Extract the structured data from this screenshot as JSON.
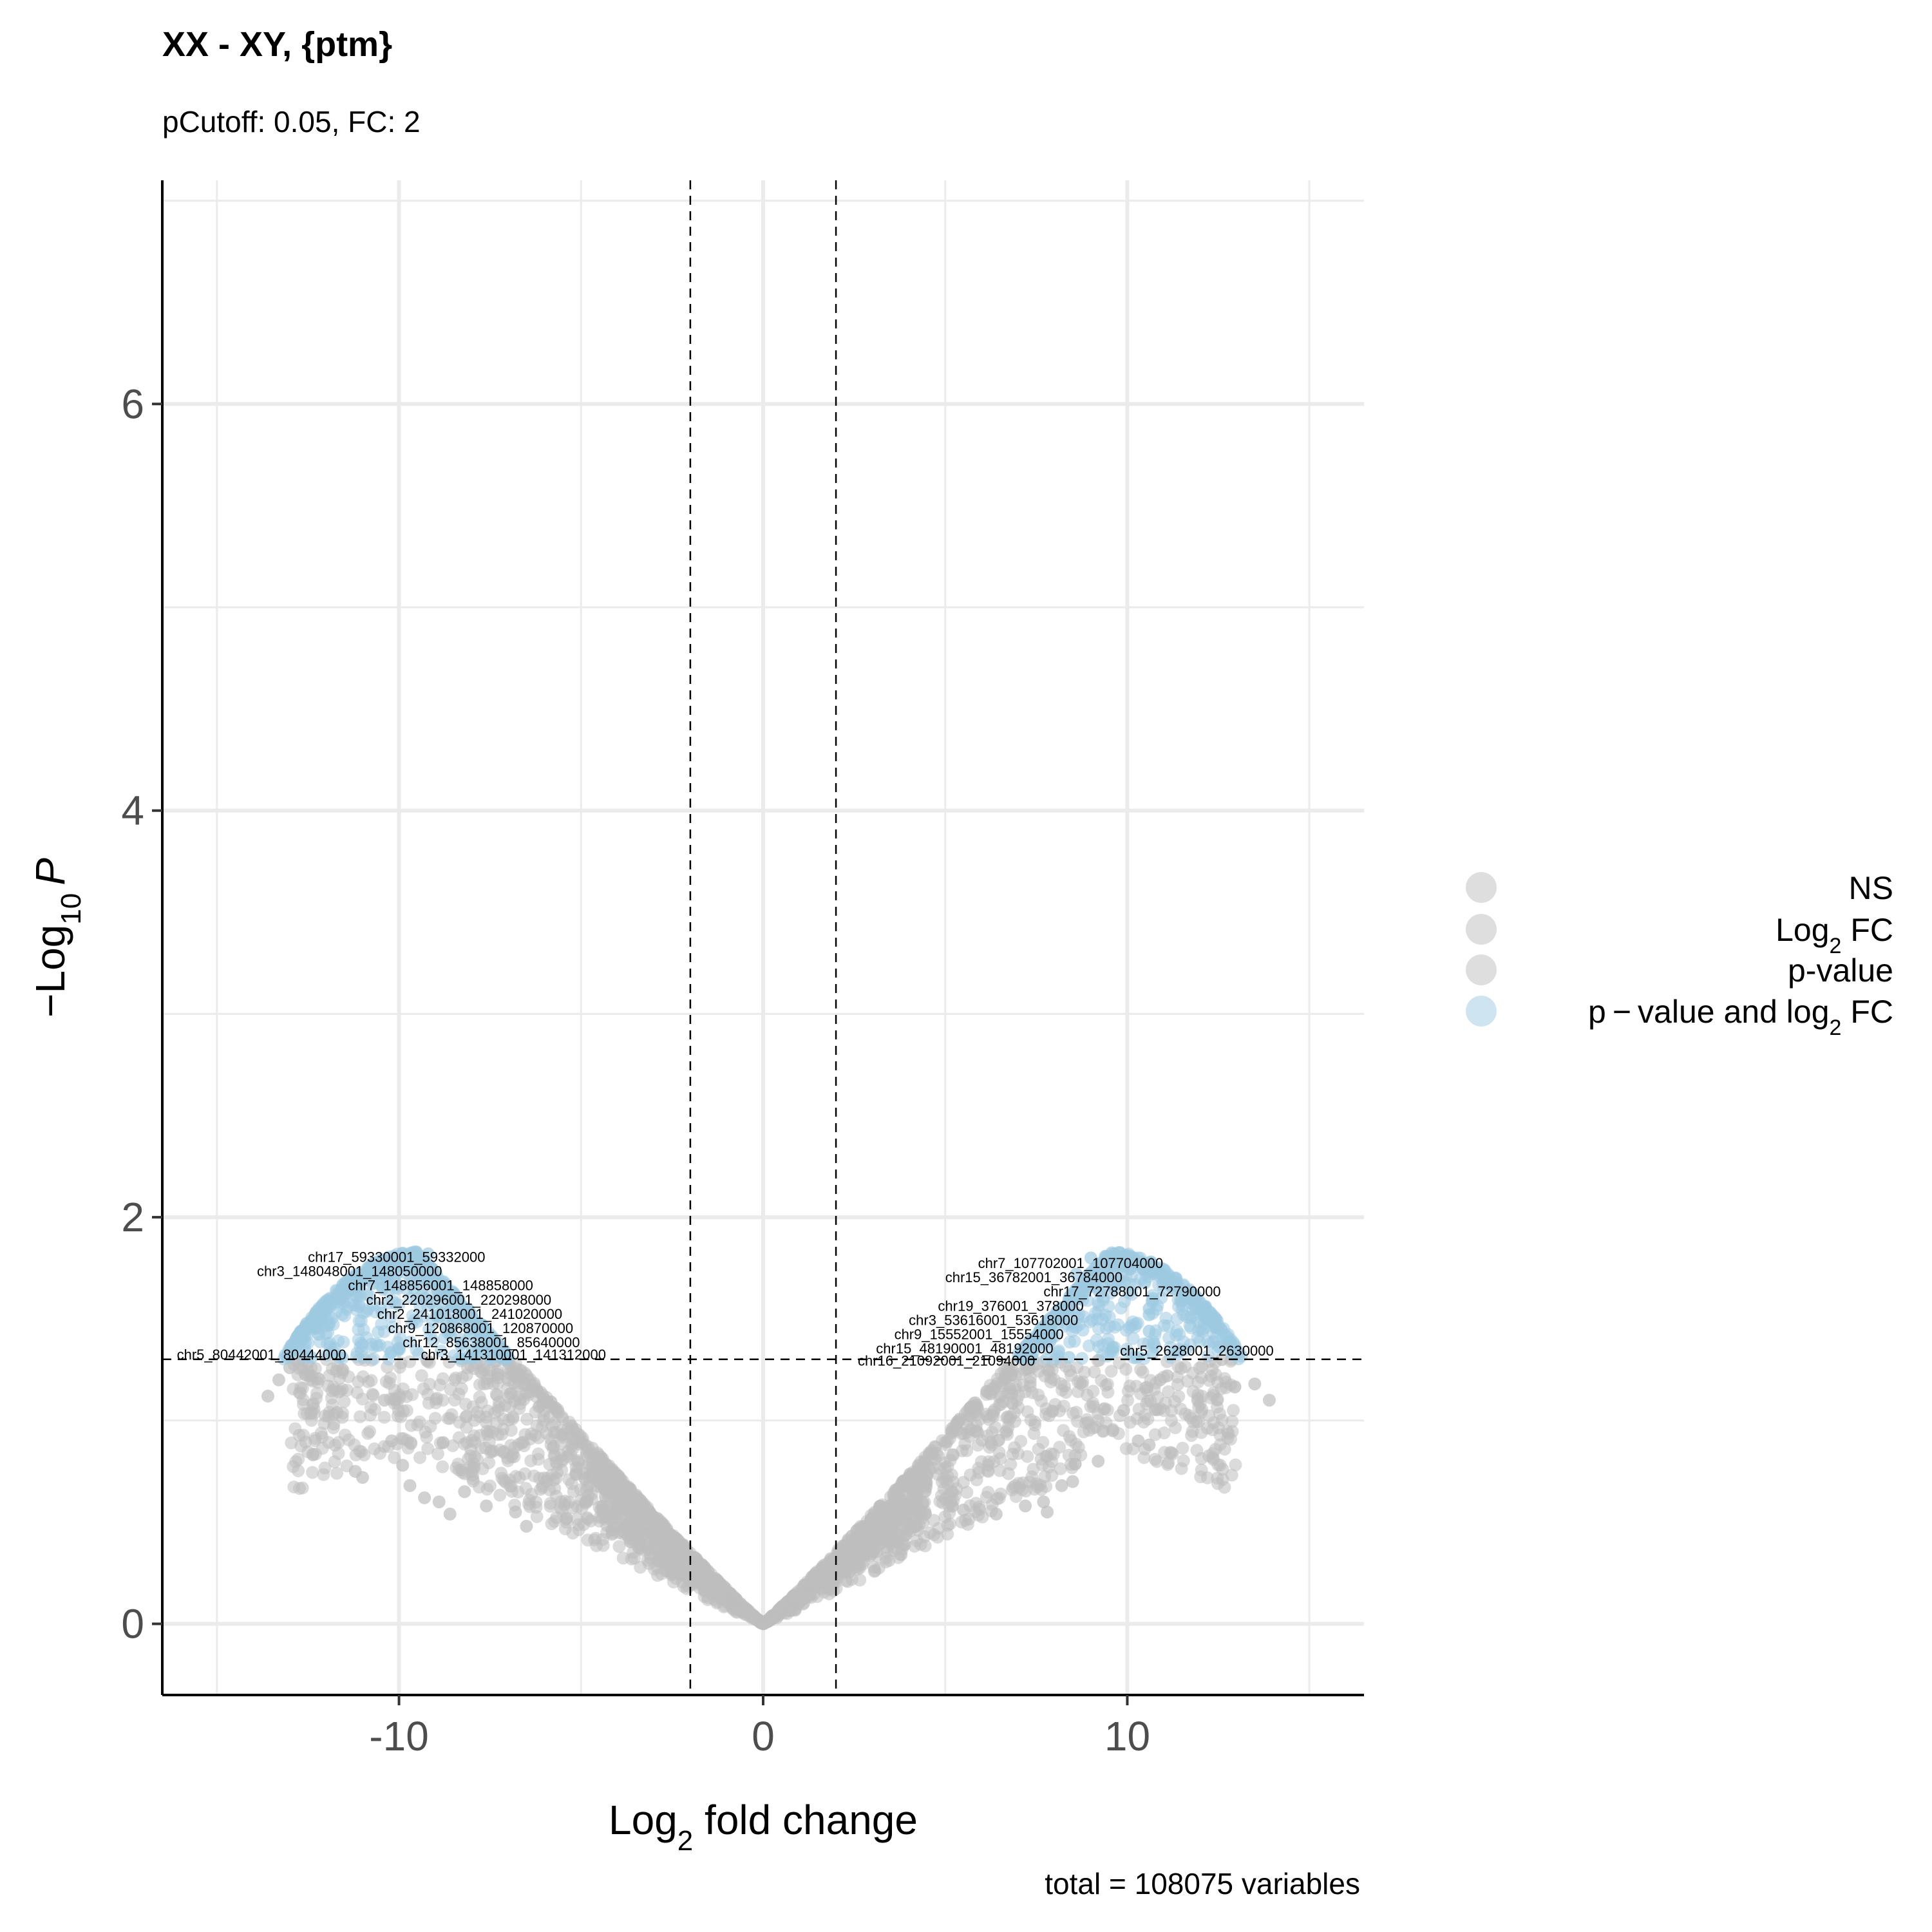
{
  "chart_data": {
    "type": "scatter",
    "title": "XX - XY, {ptm}",
    "subtitle": "pCutoff: 0.05, FC: 2",
    "caption": "total = 108075 variables",
    "xlabel": {
      "main": "Log",
      "sub": "2",
      "rest": " fold change"
    },
    "ylabel": {
      "prefix": "−Log",
      "sub": "10",
      "italic": "P"
    },
    "xlim": [
      -16.5,
      16.5
    ],
    "ylim": [
      -0.35,
      7.1
    ],
    "x_ticks": [
      -10,
      0,
      10
    ],
    "x_tick_labels": [
      "-10",
      "0",
      "10"
    ],
    "y_ticks": [
      0,
      2,
      4,
      6
    ],
    "y_tick_labels": [
      "0",
      "2",
      "4",
      "6"
    ],
    "grid": true,
    "cutoffs": {
      "log2fc": [
        -2,
        2
      ],
      "neg_log10_p": 1.301
    },
    "legend": {
      "position": "right",
      "entries": [
        {
          "key": "NS",
          "text": "NS",
          "color": "#bebebe"
        },
        {
          "key": "log2fc",
          "text": "Log",
          "sub": "2",
          "rest": " FC",
          "color": "#bebebe"
        },
        {
          "key": "pvalue",
          "text": "p-value",
          "color": "#bebebe"
        },
        {
          "key": "both",
          "text": "p − value and log",
          "sub": "2",
          "rest": " FC",
          "color": "#9ecae1"
        }
      ]
    },
    "colors": {
      "ns": "#bebebe",
      "significant": "#9ecae1"
    },
    "envelope": {
      "peak_x_abs": 9.5,
      "peak_y": 1.83,
      "width": 5.8
    },
    "outliers": [
      [
        -13.6,
        1.12
      ],
      [
        -13.3,
        1.2
      ],
      [
        -13.0,
        1.26
      ],
      [
        -11.7,
        1.04
      ],
      [
        -11.2,
        0.75
      ],
      [
        -11.0,
        0.72
      ],
      [
        -10.4,
        1.1
      ],
      [
        -10.2,
        0.9
      ],
      [
        -9.9,
        0.78
      ],
      [
        -9.7,
        0.68
      ],
      [
        -9.3,
        0.62
      ],
      [
        -8.9,
        0.6
      ],
      [
        -8.6,
        0.54
      ],
      [
        -8.2,
        0.65
      ],
      [
        -7.6,
        0.58
      ],
      [
        -6.8,
        0.55
      ],
      [
        -6.5,
        0.48
      ],
      [
        -5.4,
        0.52
      ],
      [
        12.6,
        1.3
      ],
      [
        13.5,
        1.18
      ],
      [
        13.9,
        1.1
      ],
      [
        11.1,
        1.22
      ],
      [
        10.9,
        1.2
      ],
      [
        10.6,
        0.88
      ],
      [
        10.3,
        0.9
      ],
      [
        9.9,
        1.05
      ],
      [
        9.6,
        0.95
      ],
      [
        9.2,
        0.8
      ],
      [
        8.5,
        0.7
      ],
      [
        8.2,
        0.68
      ],
      [
        7.7,
        0.6
      ],
      [
        7.2,
        0.58
      ],
      [
        7.8,
        0.55
      ],
      [
        6.4,
        0.54
      ],
      [
        5.5,
        0.56
      ],
      [
        4.2,
        0.48
      ]
    ],
    "labeled_points": [
      {
        "label": "chr17_59330001_59332000",
        "x": -9.2,
        "y": 1.82,
        "lx": -12.5,
        "ly": 1.78
      },
      {
        "label": "chr3_148048001_148050000",
        "x": -10.3,
        "y": 1.72,
        "lx": -13.9,
        "ly": 1.71
      },
      {
        "label": "chr7_148856001_148858000",
        "x": -9.6,
        "y": 1.65,
        "lx": -11.4,
        "ly": 1.64
      },
      {
        "label": "chr2_220296001_220298000",
        "x": -9.1,
        "y": 1.58,
        "lx": -10.9,
        "ly": 1.57
      },
      {
        "label": "chr2_241018001_241020000",
        "x": -8.9,
        "y": 1.51,
        "lx": -10.6,
        "ly": 1.5
      },
      {
        "label": "chr9_120868001_120870000",
        "x": -8.6,
        "y": 1.44,
        "lx": -10.3,
        "ly": 1.43
      },
      {
        "label": "chr12_85638001_85640000",
        "x": -8.3,
        "y": 1.37,
        "lx": -9.9,
        "ly": 1.36
      },
      {
        "label": "chr5_80442001_80444000",
        "x": -12.4,
        "y": 1.31,
        "lx": -16.1,
        "ly": 1.3
      },
      {
        "label": "chr3_141310001_141312000",
        "x": -8.0,
        "y": 1.31,
        "lx": -9.4,
        "ly": 1.3
      },
      {
        "label": "chr7_107702001_107704000",
        "x": 9.0,
        "y": 1.8,
        "lx": 5.9,
        "ly": 1.75
      },
      {
        "label": "chr15_36782001_36784000",
        "x": 8.6,
        "y": 1.72,
        "lx": 5.0,
        "ly": 1.68
      },
      {
        "label": "chr17_72788001_72790000",
        "x": 10.7,
        "y": 1.6,
        "lx": 7.7,
        "ly": 1.61
      },
      {
        "label": "chr19_376001_378000",
        "x": 10.6,
        "y": 1.55,
        "lx": 4.8,
        "ly": 1.54
      },
      {
        "label": "chr3_53616001_53618000",
        "x": 10.6,
        "y": 1.52,
        "lx": 4.0,
        "ly": 1.47
      },
      {
        "label": "chr9_15552001_15554000",
        "x": 10.6,
        "y": 1.44,
        "lx": 3.6,
        "ly": 1.4
      },
      {
        "label": "chr15_48190001_48192000",
        "x": 9.6,
        "y": 1.36,
        "lx": 3.1,
        "ly": 1.33
      },
      {
        "label": "chr5_2628001_2630000",
        "x": 10.7,
        "y": 1.33,
        "lx": 9.8,
        "ly": 1.32
      },
      {
        "label": "chr16_21092001_21094000",
        "x": 8.4,
        "y": 1.31,
        "lx": 2.6,
        "ly": 1.27
      }
    ]
  }
}
